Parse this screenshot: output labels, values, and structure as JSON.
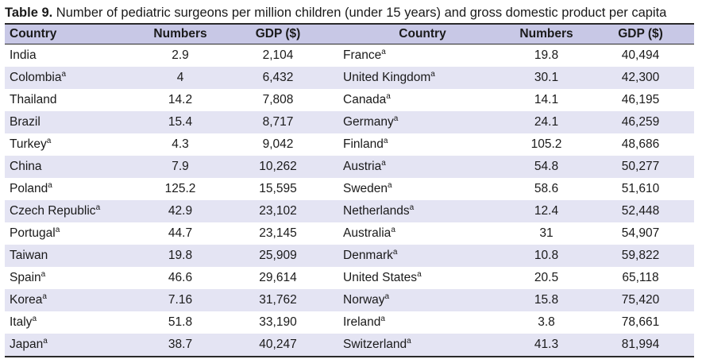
{
  "caption": {
    "label": "Table 9.",
    "text": " Number of pediatric surgeons per million children (under 15 years) and gross domestic product per capita"
  },
  "headers": [
    "Country",
    "Numbers",
    "GDP ($)",
    "Country",
    "Numbers",
    "GDP ($)"
  ],
  "rows": [
    {
      "c1": "India",
      "s1": "",
      "n1": "2.9",
      "g1": "2,104",
      "c2": "France",
      "s2": "a",
      "n2": "19.8",
      "g2": "40,494"
    },
    {
      "c1": "Colombia",
      "s1": "a",
      "n1": "4",
      "g1": "6,432",
      "c2": "United Kingdom",
      "s2": "a",
      "n2": "30.1",
      "g2": "42,300"
    },
    {
      "c1": "Thailand",
      "s1": "",
      "n1": "14.2",
      "g1": "7,808",
      "c2": "Canada",
      "s2": "a",
      "n2": "14.1",
      "g2": "46,195"
    },
    {
      "c1": "Brazil",
      "s1": "",
      "n1": "15.4",
      "g1": "8,717",
      "c2": "Germany",
      "s2": "a",
      "n2": "24.1",
      "g2": "46,259"
    },
    {
      "c1": "Turkey",
      "s1": "a",
      "n1": "4.3",
      "g1": "9,042",
      "c2": "Finland",
      "s2": "a",
      "n2": "105.2",
      "g2": "48,686"
    },
    {
      "c1": "China",
      "s1": "",
      "n1": "7.9",
      "g1": "10,262",
      "c2": "Austria",
      "s2": "a",
      "n2": "54.8",
      "g2": "50,277"
    },
    {
      "c1": "Poland",
      "s1": "a",
      "n1": "125.2",
      "g1": "15,595",
      "c2": "Sweden",
      "s2": "a",
      "n2": "58.6",
      "g2": "51,610"
    },
    {
      "c1": "Czech Republic",
      "s1": "a",
      "n1": "42.9",
      "g1": "23,102",
      "c2": "Netherlands",
      "s2": "a",
      "n2": "12.4",
      "g2": "52,448"
    },
    {
      "c1": "Portugal",
      "s1": "a",
      "n1": "44.7",
      "g1": "23,145",
      "c2": "Australia",
      "s2": "a",
      "n2": "31",
      "g2": "54,907"
    },
    {
      "c1": "Taiwan",
      "s1": "",
      "n1": "19.8",
      "g1": "25,909",
      "c2": "Denmark",
      "s2": "a",
      "n2": "10.8",
      "g2": "59,822"
    },
    {
      "c1": "Spain",
      "s1": "a",
      "n1": "46.6",
      "g1": "29,614",
      "c2": "United States",
      "s2": "a",
      "n2": "20.5",
      "g2": "65,118"
    },
    {
      "c1": "Korea",
      "s1": "a",
      "n1": "7.16",
      "g1": "31,762",
      "c2": "Norway",
      "s2": "a",
      "n2": "15.8",
      "g2": "75,420"
    },
    {
      "c1": "Italy",
      "s1": "a",
      "n1": "51.8",
      "g1": "33,190",
      "c2": "Ireland",
      "s2": "a",
      "n2": "3.8",
      "g2": "78,661"
    },
    {
      "c1": "Japan",
      "s1": "a",
      "n1": "38.7",
      "g1": "40,247",
      "c2": "Switzerland",
      "s2": "a",
      "n2": "41.3",
      "g2": "81,994"
    }
  ]
}
